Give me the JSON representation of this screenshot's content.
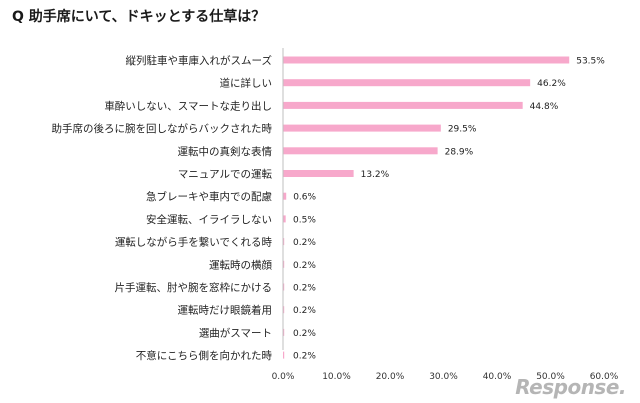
{
  "chart_data": {
    "type": "bar",
    "orientation": "horizontal",
    "title": "Q 助手席にいて、ドキッとする仕草は？",
    "categories": [
      "縦列駐車や車庫入れがスムーズ",
      "道に詳しい",
      "車酔いしない、スマートな走り出し",
      "助手席の後ろに腕を回しながらバックされた時",
      "運転中の真剣な表情",
      "マニュアルでの運転",
      "急ブレーキや車内での配慮",
      "安全運転、イライラしない",
      "運転しながら手を繋いでくれる時",
      "運転時の横顔",
      "片手運転、肘や腕を窓枠にかける",
      "運転時だけ眼鏡着用",
      "選曲がスマート",
      "不意にこちら側を向かれた時"
    ],
    "values": [
      53.5,
      46.2,
      44.8,
      29.5,
      28.9,
      13.2,
      0.6,
      0.5,
      0.2,
      0.2,
      0.2,
      0.2,
      0.2,
      0.2
    ],
    "value_labels": [
      "53.5%",
      "46.2%",
      "44.8%",
      "29.5%",
      "28.9%",
      "13.2%",
      "0.6%",
      "0.5%",
      "0.2%",
      "0.2%",
      "0.2%",
      "0.2%",
      "0.2%",
      "0.2%"
    ],
    "xlim": [
      0,
      60
    ],
    "x_ticks": [
      0,
      10,
      20,
      30,
      40,
      50,
      60
    ],
    "x_tick_labels": [
      "0.0%",
      "10.0%",
      "20.0%",
      "30.0%",
      "40.0%",
      "50.0%",
      "60.0%"
    ],
    "xlabel": "",
    "ylabel": "",
    "grid": false,
    "bar_color": "#f7a8cb",
    "axis_color": "#bfbfbf"
  },
  "watermark": {
    "text": "Response."
  }
}
